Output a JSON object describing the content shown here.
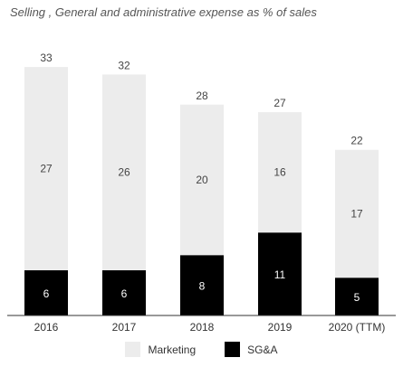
{
  "title": "Selling , General and administrative expense as % of sales",
  "chart_data": {
    "type": "bar",
    "stacked": true,
    "categories": [
      "2016",
      "2017",
      "2018",
      "2019",
      "2020 (TTM)"
    ],
    "series": [
      {
        "name": "SG&A",
        "values": [
          6,
          6,
          8,
          11,
          5
        ],
        "color": "#000000"
      },
      {
        "name": "Marketing",
        "values": [
          27,
          26,
          20,
          16,
          17
        ],
        "color": "#ececec"
      }
    ],
    "totals": [
      33,
      32,
      28,
      27,
      22
    ],
    "legend_position": "bottom",
    "grid": false
  },
  "legend": [
    {
      "label": "Marketing",
      "color": "#ececec"
    },
    {
      "label": "SG&A",
      "color": "#000000"
    }
  ]
}
